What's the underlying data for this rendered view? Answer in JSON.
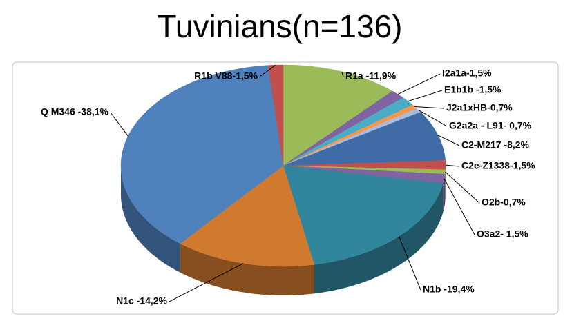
{
  "chart_data": {
    "type": "pie3d",
    "title": "Tuvinians(n=136)",
    "values": [
      11.9,
      1.5,
      1.5,
      0.7,
      0.7,
      8.2,
      1.5,
      0.7,
      1.5,
      19.4,
      14.2,
      38.1,
      1.5
    ],
    "value_labels": [
      "R1a -11,9%",
      "I2a1a-1,5%",
      "E1b1b -1,5%",
      "J2a1xHB-0,7%",
      "G2a2a - L91- 0,7%",
      "C2-M217 -8,2%",
      "C2e-Z1338-1,5%",
      "O2b-0,7%",
      "O3a2- 1,5%",
      "N1b -19,4%",
      "N1c -14,2%",
      "Q M346 -38,1%",
      "R1b V88-1,5%"
    ],
    "colors": [
      "#9bbb59",
      "#8064a2",
      "#4bacc6",
      "#f79646",
      "#a9bcdc",
      "#3f6ca6",
      "#c0504d",
      "#9bbb59",
      "#8064a2",
      "#31859c",
      "#d07a30",
      "#4f81bd",
      "#c0504d"
    ]
  }
}
